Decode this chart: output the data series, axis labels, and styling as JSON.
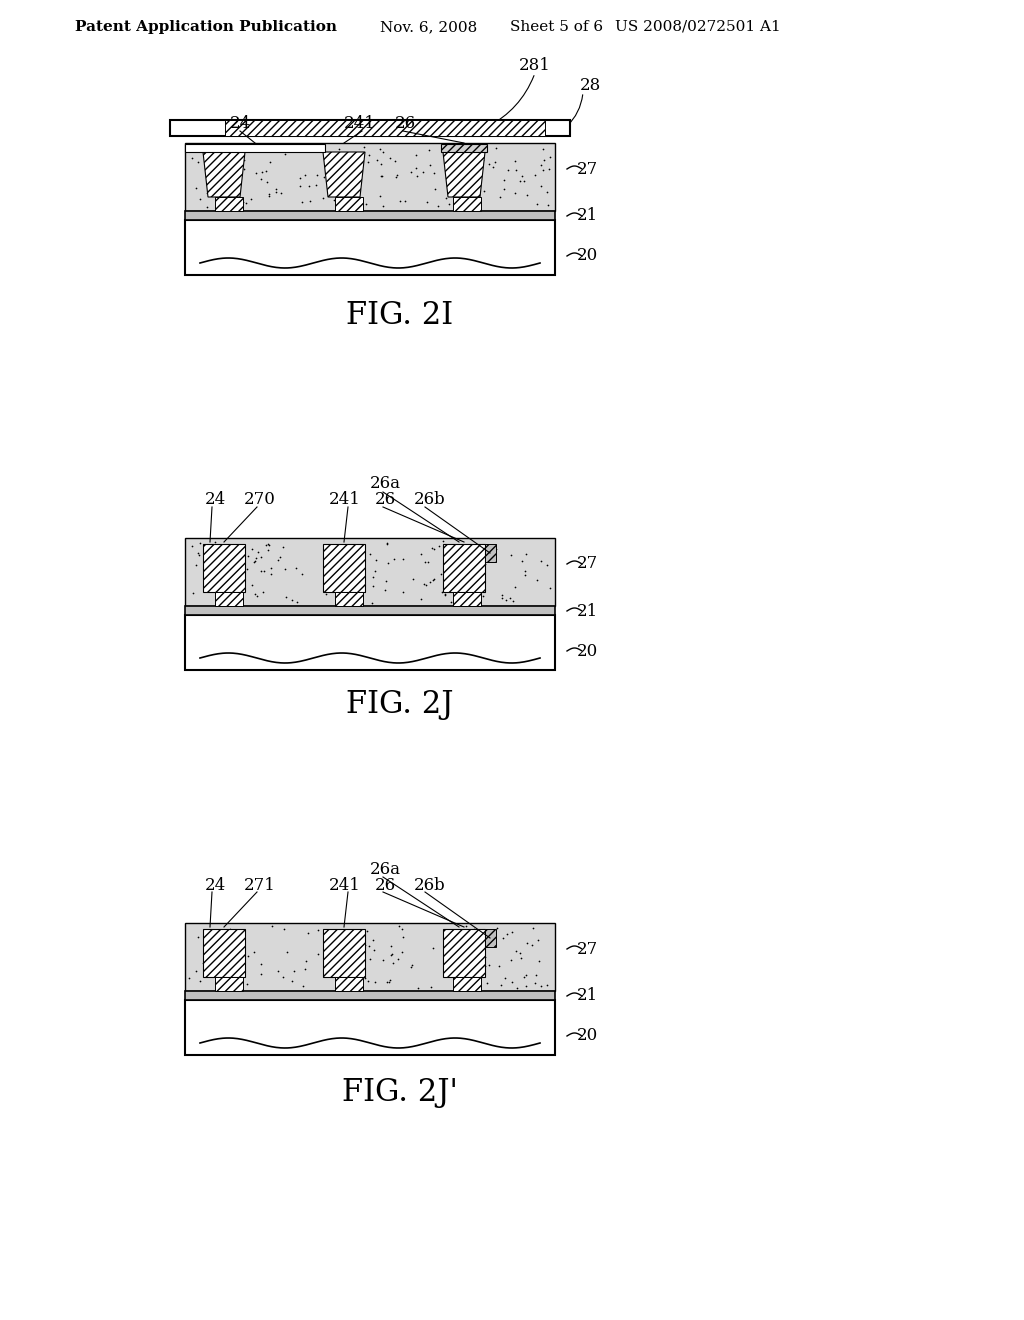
{
  "bg": "#ffffff",
  "lc": "#000000",
  "header_left": "Patent Application Publication",
  "header_mid1": "Nov. 6, 2008",
  "header_mid2": "Sheet 5 of 6",
  "header_right": "US 2008/0272501 A1",
  "fig1_title": "FIG. 2I",
  "fig2_title": "FIG. 2J",
  "fig3_title": "FIG. 2J’",
  "stipple_fc": "#d8d8d8",
  "hatch_fc": "#ffffff",
  "layer21_fc": "#b0b0b0",
  "substrate_fc": "#ffffff"
}
